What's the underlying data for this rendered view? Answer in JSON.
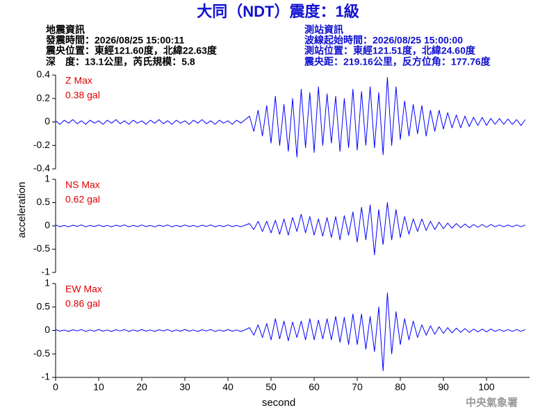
{
  "header": {
    "title": "大同（NDT）震度：1級",
    "left": [
      "地震資訊",
      "發震時間：2026/08/25 15:00:11",
      "震央位置：東經121.60度，北緯22.63度",
      "深　度：13.1公里，芮氏規模：5.8"
    ],
    "right": [
      "測站資訊",
      "波線起始時間：2026/08/25 15:00:00",
      "測站位置：東經121.51度，北緯24.60度",
      "震央距：219.16公里，反方位角：177.76度"
    ],
    "footer": "中央氣象署"
  },
  "chart_data": [
    {
      "type": "line",
      "label": "Z Max",
      "max_label": "0.38 gal",
      "color": "#0000ff",
      "label_color": "#e00000",
      "xlim": [
        0,
        110
      ],
      "ylim": [
        -0.4,
        0.4
      ],
      "yticks": [
        0.4,
        0.2,
        0,
        -0.2,
        -0.4
      ],
      "x": [
        0,
        1,
        2,
        3,
        4,
        5,
        6,
        7,
        8,
        9,
        10,
        11,
        12,
        13,
        14,
        15,
        16,
        17,
        18,
        19,
        20,
        21,
        22,
        23,
        24,
        25,
        26,
        27,
        28,
        29,
        30,
        31,
        32,
        33,
        34,
        35,
        36,
        37,
        38,
        39,
        40,
        41,
        42,
        43,
        44,
        45,
        46,
        47,
        48,
        49,
        50,
        51,
        52,
        53,
        54,
        55,
        56,
        57,
        58,
        59,
        60,
        61,
        62,
        63,
        64,
        65,
        66,
        67,
        68,
        69,
        70,
        71,
        72,
        73,
        74,
        75,
        76,
        77,
        78,
        79,
        80,
        81,
        82,
        83,
        84,
        85,
        86,
        87,
        88,
        89,
        90,
        91,
        92,
        93,
        94,
        95,
        96,
        97,
        98,
        99,
        100,
        101,
        102,
        103,
        104,
        105,
        106,
        107,
        108,
        109
      ],
      "values": [
        0.01,
        -0.02,
        0.015,
        -0.01,
        0.02,
        -0.015,
        0.01,
        -0.02,
        0.015,
        -0.01,
        0.01,
        -0.02,
        0.015,
        -0.01,
        0.02,
        -0.015,
        0.01,
        -0.02,
        0.015,
        -0.01,
        0.01,
        -0.02,
        0.015,
        -0.01,
        0.02,
        -0.015,
        0.01,
        -0.02,
        0.015,
        -0.01,
        0.01,
        -0.02,
        0.015,
        -0.01,
        0.02,
        -0.015,
        0.01,
        -0.02,
        0.015,
        -0.01,
        0.01,
        -0.02,
        0.015,
        -0.01,
        0.02,
        0.05,
        -0.08,
        0.1,
        -0.12,
        0.14,
        -0.18,
        0.22,
        -0.2,
        0.15,
        -0.25,
        0.2,
        -0.3,
        0.28,
        -0.22,
        0.25,
        -0.26,
        0.3,
        -0.2,
        0.24,
        -0.18,
        0.22,
        -0.25,
        0.2,
        -0.22,
        0.28,
        -0.24,
        0.26,
        -0.2,
        0.3,
        -0.22,
        0.25,
        -0.28,
        0.38,
        -0.2,
        0.3,
        -0.15,
        0.18,
        -0.12,
        0.15,
        -0.1,
        0.14,
        -0.12,
        0.1,
        -0.08,
        0.1,
        -0.06,
        0.08,
        -0.05,
        0.06,
        -0.05,
        0.05,
        -0.04,
        0.04,
        -0.03,
        0.04,
        -0.03,
        0.03,
        -0.02,
        0.03,
        -0.02,
        0.025,
        -0.02,
        0.02,
        -0.03,
        0.02
      ]
    },
    {
      "type": "line",
      "label": "NS Max",
      "max_label": "0.62 gal",
      "color": "#0000ff",
      "label_color": "#e00000",
      "ylabel": "acceleration",
      "xlim": [
        0,
        110
      ],
      "ylim": [
        -1,
        1
      ],
      "yticks": [
        1,
        0.5,
        0,
        -0.5,
        -1
      ],
      "x": [
        0,
        1,
        2,
        3,
        4,
        5,
        6,
        7,
        8,
        9,
        10,
        11,
        12,
        13,
        14,
        15,
        16,
        17,
        18,
        19,
        20,
        21,
        22,
        23,
        24,
        25,
        26,
        27,
        28,
        29,
        30,
        31,
        32,
        33,
        34,
        35,
        36,
        37,
        38,
        39,
        40,
        41,
        42,
        43,
        44,
        45,
        46,
        47,
        48,
        49,
        50,
        51,
        52,
        53,
        54,
        55,
        56,
        57,
        58,
        59,
        60,
        61,
        62,
        63,
        64,
        65,
        66,
        67,
        68,
        69,
        70,
        71,
        72,
        73,
        74,
        75,
        76,
        77,
        78,
        79,
        80,
        81,
        82,
        83,
        84,
        85,
        86,
        87,
        88,
        89,
        90,
        91,
        92,
        93,
        94,
        95,
        96,
        97,
        98,
        99,
        100,
        101,
        102,
        103,
        104,
        105,
        106,
        107,
        108,
        109
      ],
      "values": [
        0.02,
        -0.015,
        0.01,
        -0.02,
        0.015,
        -0.01,
        0.02,
        -0.02,
        0.01,
        -0.015,
        0.02,
        -0.015,
        0.01,
        -0.02,
        0.015,
        -0.01,
        0.02,
        -0.02,
        0.01,
        -0.015,
        0.02,
        -0.015,
        0.01,
        -0.02,
        0.015,
        -0.01,
        0.02,
        -0.02,
        0.01,
        -0.015,
        0.02,
        -0.015,
        0.01,
        -0.02,
        0.015,
        -0.01,
        0.02,
        -0.02,
        0.01,
        -0.015,
        0.02,
        -0.015,
        0.01,
        -0.02,
        0.015,
        0.05,
        -0.08,
        0.1,
        -0.12,
        0.1,
        -0.15,
        0.12,
        -0.18,
        0.15,
        -0.2,
        0.18,
        -0.12,
        0.25,
        -0.15,
        0.2,
        -0.2,
        0.15,
        -0.22,
        0.18,
        -0.25,
        0.2,
        -0.3,
        0.22,
        -0.2,
        0.3,
        -0.35,
        0.4,
        -0.3,
        0.45,
        -0.62,
        0.35,
        -0.4,
        0.5,
        -0.3,
        0.35,
        -0.25,
        0.2,
        -0.18,
        0.15,
        -0.12,
        0.15,
        -0.1,
        0.1,
        -0.08,
        0.08,
        -0.06,
        0.06,
        -0.05,
        0.05,
        -0.04,
        0.04,
        -0.04,
        0.03,
        -0.03,
        0.03,
        -0.03,
        0.03,
        -0.02,
        0.02,
        -0.02,
        0.02,
        -0.02,
        0.02,
        -0.02,
        0.02
      ]
    },
    {
      "type": "line",
      "label": "EW Max",
      "max_label": "0.86 gal",
      "color": "#0000ff",
      "label_color": "#e00000",
      "xlabel": "second",
      "xlim": [
        0,
        110
      ],
      "xticks": [
        0,
        10,
        20,
        30,
        40,
        50,
        60,
        70,
        80,
        90,
        100
      ],
      "ylim": [
        -1,
        1
      ],
      "yticks": [
        1,
        0.5,
        0,
        -0.5,
        -1
      ],
      "x": [
        0,
        1,
        2,
        3,
        4,
        5,
        6,
        7,
        8,
        9,
        10,
        11,
        12,
        13,
        14,
        15,
        16,
        17,
        18,
        19,
        20,
        21,
        22,
        23,
        24,
        25,
        26,
        27,
        28,
        29,
        30,
        31,
        32,
        33,
        34,
        35,
        36,
        37,
        38,
        39,
        40,
        41,
        42,
        43,
        44,
        45,
        46,
        47,
        48,
        49,
        50,
        51,
        52,
        53,
        54,
        55,
        56,
        57,
        58,
        59,
        60,
        61,
        62,
        63,
        64,
        65,
        66,
        67,
        68,
        69,
        70,
        71,
        72,
        73,
        74,
        75,
        76,
        77,
        78,
        79,
        80,
        81,
        82,
        83,
        84,
        85,
        86,
        87,
        88,
        89,
        90,
        91,
        92,
        93,
        94,
        95,
        96,
        97,
        98,
        99,
        100,
        101,
        102,
        103,
        104,
        105,
        106,
        107,
        108,
        109
      ],
      "values": [
        0.02,
        -0.015,
        0.01,
        -0.02,
        0.015,
        -0.01,
        0.02,
        -0.02,
        0.01,
        -0.015,
        0.02,
        -0.015,
        0.01,
        -0.02,
        0.015,
        -0.01,
        0.02,
        -0.02,
        0.01,
        -0.015,
        0.02,
        -0.015,
        0.01,
        -0.02,
        0.015,
        -0.01,
        0.02,
        -0.02,
        0.01,
        -0.015,
        0.02,
        -0.015,
        0.01,
        -0.02,
        0.015,
        -0.01,
        0.02,
        -0.02,
        0.01,
        -0.015,
        0.02,
        -0.015,
        0.01,
        -0.02,
        0.015,
        0.06,
        -0.1,
        0.12,
        -0.15,
        0.15,
        -0.2,
        0.25,
        -0.18,
        0.2,
        -0.22,
        0.18,
        -0.15,
        0.2,
        -0.2,
        0.25,
        -0.2,
        0.22,
        -0.18,
        0.25,
        -0.2,
        0.3,
        -0.25,
        0.28,
        -0.3,
        0.35,
        -0.3,
        0.35,
        -0.4,
        0.3,
        -0.45,
        0.5,
        -0.86,
        0.8,
        -0.5,
        0.4,
        -0.3,
        0.25,
        -0.2,
        0.2,
        -0.15,
        0.12,
        -0.1,
        0.1,
        -0.08,
        0.08,
        -0.06,
        0.06,
        -0.05,
        0.05,
        -0.04,
        0.04,
        -0.04,
        0.03,
        -0.03,
        0.03,
        -0.03,
        0.03,
        -0.02,
        0.02,
        -0.02,
        0.02,
        -0.02,
        0.02,
        -0.02,
        0.02
      ]
    }
  ]
}
